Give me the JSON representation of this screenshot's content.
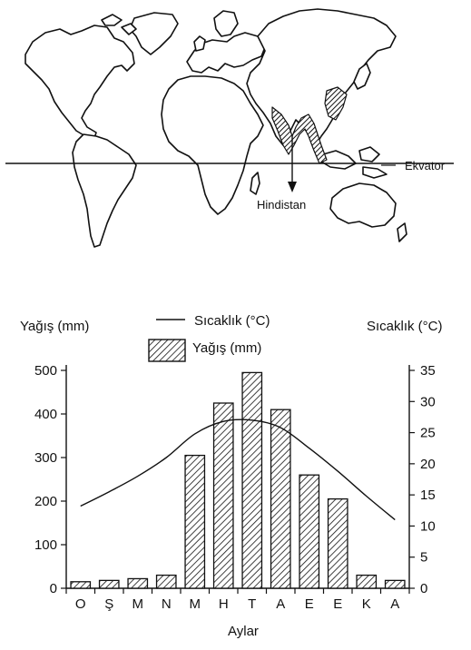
{
  "map": {
    "equator_label": "Ekvator",
    "country_label": "Hindistan"
  },
  "chart_data": {
    "type": "bar",
    "categories": [
      "O",
      "Ş",
      "M",
      "N",
      "M",
      "H",
      "T",
      "A",
      "E",
      "E",
      "K",
      "A"
    ],
    "xlabel": "Aylar",
    "ylabel_left": "Yağış (mm)",
    "ylabel_right": "Sıcaklık (°C)",
    "ylim_left": [
      0,
      500
    ],
    "ylim_right": [
      0,
      35
    ],
    "yticks_left": [
      0,
      100,
      200,
      300,
      400,
      500
    ],
    "yticks_right": [
      0,
      5,
      10,
      15,
      20,
      25,
      30,
      35
    ],
    "grid": false,
    "legend_placement": "top-center",
    "series": [
      {
        "name": "Yağış (mm)",
        "type": "bar",
        "axis": "left",
        "pattern": "diagonal-hatch",
        "values": [
          15,
          18,
          22,
          30,
          305,
          425,
          495,
          410,
          260,
          205,
          30,
          18
        ]
      },
      {
        "name": "Sıcaklık (°C)",
        "type": "line",
        "axis": "right",
        "values": [
          13.2,
          15.5,
          18.0,
          21.0,
          24.8,
          26.8,
          27.0,
          25.8,
          22.5,
          18.8,
          14.8,
          11.0
        ]
      }
    ]
  }
}
